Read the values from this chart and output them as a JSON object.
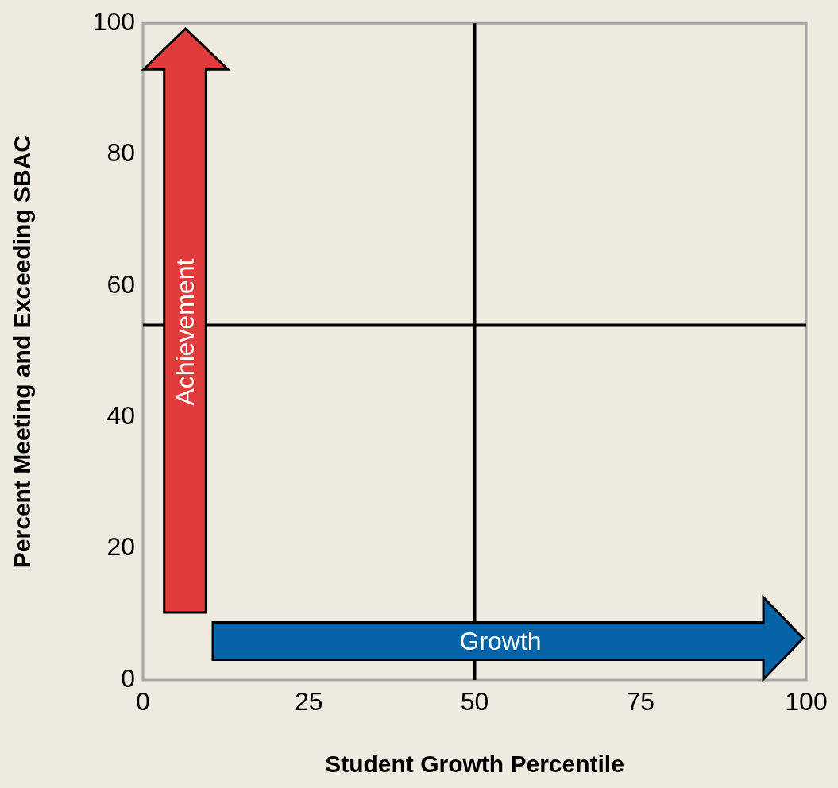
{
  "chart_data": {
    "type": "scatter",
    "xlabel": "Student Growth Percentile",
    "ylabel": "Percent Meeting and Exceeding SBAC",
    "xlim": [
      0,
      100
    ],
    "xticks": [
      0,
      25,
      50,
      75,
      100
    ],
    "ylim": [
      0,
      100
    ],
    "yticks": [
      0,
      20,
      40,
      60,
      80,
      100
    ],
    "grid": false,
    "legend": false,
    "ref_lines": [
      {
        "axis": "x",
        "value": 50,
        "color": "#000000"
      },
      {
        "axis": "y",
        "value": 54,
        "color": "#000000"
      }
    ],
    "annotations": [
      "Achievement",
      "Growth"
    ]
  }
}
